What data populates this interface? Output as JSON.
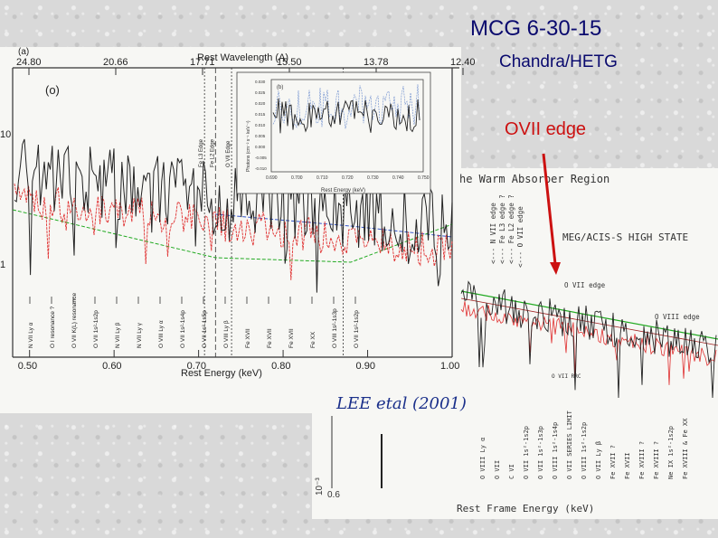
{
  "slide": {
    "title": "MCG 6-30-15",
    "subtitle": "Chandra/HETG",
    "edge_annotation": "OVII edge"
  },
  "colors": {
    "title": "#0a0a6e",
    "annotation": "#cc1111",
    "data": "#222222",
    "model": "#e03030",
    "cont_blue": "#3355cc",
    "cont_green": "#22aa22"
  },
  "chart_data": [
    {
      "type": "line",
      "panel_label": "(a)",
      "panel_label2": "(o)",
      "xlabel": "Rest Energy (keV)",
      "x2label": "Rest Wavelength (A)",
      "xlim": [
        0.48,
        1.0
      ],
      "x_ticks": [
        "0.50",
        "0.60",
        "0.70",
        "0.80",
        "0.90",
        "1.00"
      ],
      "x2_ticks": [
        "24.80",
        "20.66",
        "17.71",
        "15.50",
        "13.78",
        "12.40"
      ],
      "y_ticks": [
        "10",
        "1"
      ],
      "edge_labels": [
        "Fe L3 Edge",
        "Fe L2 Edge",
        "O VII Edge",
        "O VIII Edge"
      ],
      "edge_energies": [
        0.707,
        0.72,
        0.739,
        0.871
      ],
      "line_ids": [
        "N VII Ly α",
        "O I resonance ?",
        "O VII K(L) resonance",
        "O VII 1s²-1s2p",
        "N VII Ly β",
        "N VII Ly γ",
        "O VIII Ly α",
        "O VII 1s²-1s4p",
        "O VII 1s²-1s5p",
        "O VIII Ly β",
        "Fe XVII",
        "Fe XVII",
        "Fe XVII",
        "Fe XX",
        "O VIII 1s²-1s3p",
        "O VII 1s²-1s2p"
      ],
      "credit": "LEE etal (2001)",
      "inset": {
        "panel_label": "(b)",
        "x_ticks": [
          "0.690",
          "0.700",
          "0.710",
          "0.720",
          "0.730",
          "0.740",
          "0.750"
        ],
        "y_ticks": [
          "0.030",
          "0.025",
          "0.020",
          "0.015",
          "0.010",
          "0.005",
          "0.000",
          "-0.005",
          "-0.010"
        ],
        "ylabel": "Photons (cm⁻² s⁻¹ keV⁻¹)",
        "xlabel": "Rest Energy (keV)"
      }
    },
    {
      "type": "line",
      "title": "he Warm Absorber Region",
      "legend": "MEG/ACIS-S HIGH STATE",
      "xlabel": "Rest Frame Energy (keV)",
      "y_ticks": [
        "10⁻³"
      ],
      "x_ticks": [
        "0.6"
      ],
      "edge_labels": [
        "<--- N VII edge",
        "<--- Fe L3 edge ?",
        "<--- Fe L2 edge ?",
        "<--- O VII edge"
      ],
      "annotations": [
        "O VII edge",
        "O VIII edge",
        "O VII RRC"
      ],
      "line_ids": [
        "O VIII Ly α",
        "O VII",
        "C VI",
        "O VII 1s²-1s2p",
        "O VII 1s²-1s3p",
        "O VIII 1s²-1s4p",
        "O VII SERIES LIMIT",
        "O VIII 1s²-1s2p",
        "O VII Ly β",
        "Fe XVII ?",
        "Fe XVII",
        "Fe XVIII ?",
        "Fe XVIII ?",
        "Ne IX 1s²-1s2p",
        "Fe XVIII & Fe XX"
      ]
    }
  ]
}
